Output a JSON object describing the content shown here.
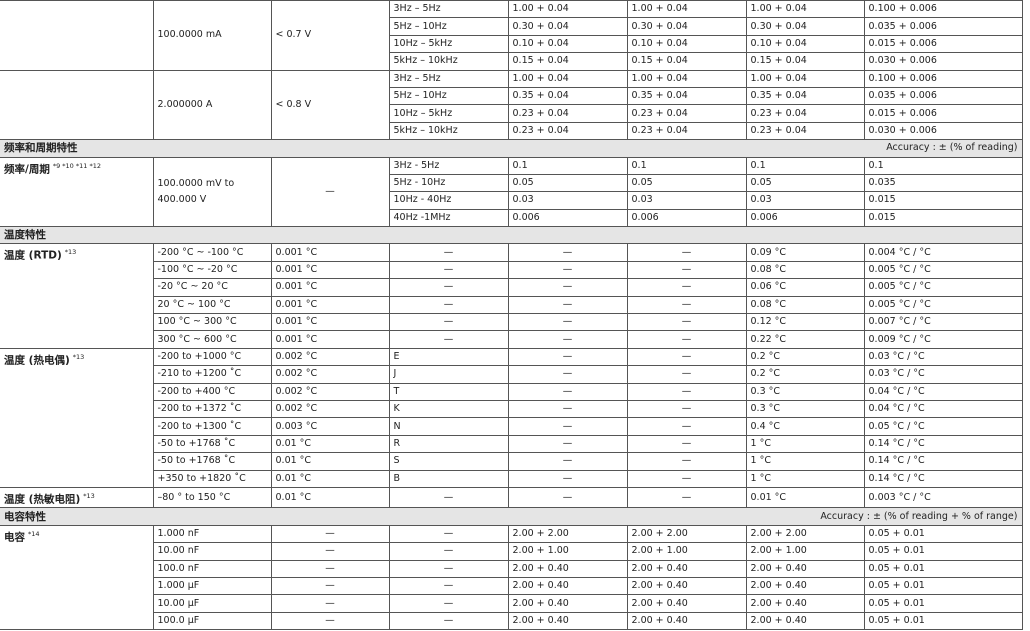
{
  "blocks": [
    {
      "range": "100.0000 mA",
      "burden": "< 0.7 V",
      "rows": [
        [
          "3Hz – 5Hz",
          "1.00 + 0.04",
          "1.00 + 0.04",
          "1.00 + 0.04",
          "0.100 + 0.006"
        ],
        [
          "5Hz – 10Hz",
          "0.30 + 0.04",
          "0.30 + 0.04",
          "0.30 + 0.04",
          "0.035 + 0.006"
        ],
        [
          "10Hz – 5kHz",
          "0.10 + 0.04",
          "0.10 + 0.04",
          "0.10 + 0.04",
          "0.015 + 0.006"
        ],
        [
          "5kHz – 10kHz",
          "0.15 + 0.04",
          "0.15 + 0.04",
          "0.15 + 0.04",
          "0.030 + 0.006"
        ]
      ]
    },
    {
      "range": "2.000000 A",
      "burden": "< 0.8 V",
      "rows": [
        [
          "3Hz – 5Hz",
          "1.00 + 0.04",
          "1.00 + 0.04",
          "1.00 + 0.04",
          "0.100 + 0.006"
        ],
        [
          "5Hz – 10Hz",
          "0.35 + 0.04",
          "0.35 + 0.04",
          "0.35 + 0.04",
          "0.035 + 0.006"
        ],
        [
          "10Hz – 5kHz",
          "0.23 + 0.04",
          "0.23 + 0.04",
          "0.23 + 0.04",
          "0.015 + 0.006"
        ],
        [
          "5kHz – 10kHz",
          "0.23 + 0.04",
          "0.23 + 0.04",
          "0.23 + 0.04",
          "0.030 + 0.006"
        ]
      ]
    },
    {
      "section": "频率和周期特性",
      "note": "Accuracy : ± (% of reading)"
    },
    {
      "label": "频率/周期",
      "sup": "*9 *10 *11 *12",
      "range": "100.0000 mV to 400.000 V",
      "burden": "—",
      "rows": [
        [
          "3Hz - 5Hz",
          "0.1",
          "0.1",
          "0.1",
          "0.1"
        ],
        [
          "5Hz - 10Hz",
          "0.05",
          "0.05",
          "0.05",
          "0.035"
        ],
        [
          "10Hz - 40Hz",
          "0.03",
          "0.03",
          "0.03",
          "0.015"
        ],
        [
          "40Hz -1MHz",
          "0.006",
          "0.006",
          "0.006",
          "0.015"
        ]
      ]
    },
    {
      "section": "温度特性"
    },
    {
      "label": "温度 (RTD)",
      "sup": "*13",
      "rows": [
        [
          "-200 °C ~ -100 °C",
          "0.001 °C",
          "—",
          "—",
          "—",
          "0.09 °C",
          "0.004 °C / °C"
        ],
        [
          "-100 °C ~ -20 °C",
          "0.001 °C",
          "—",
          "—",
          "—",
          "0.08 °C",
          "0.005 °C / °C"
        ],
        [
          "-20 °C ~ 20 °C",
          "0.001 °C",
          "—",
          "—",
          "—",
          "0.06 °C",
          "0.005 °C / °C"
        ],
        [
          "20 °C ~ 100 °C",
          "0.001 °C",
          "—",
          "—",
          "—",
          "0.08 °C",
          "0.005 °C / °C"
        ],
        [
          "100 °C ~ 300 °C",
          "0.001 °C",
          "—",
          "—",
          "—",
          "0.12 °C",
          "0.007 °C / °C"
        ],
        [
          "300 °C ~ 600 °C",
          "0.001 °C",
          "—",
          "—",
          "—",
          "0.22 °C",
          "0.009 °C / °C"
        ]
      ]
    },
    {
      "label": "温度 (热电偶)",
      "sup": "*13",
      "rows": [
        [
          "-200 to +1000 °C",
          "0.002 °C",
          "E",
          "—",
          "—",
          "0.2 °C",
          "0.03 °C / °C"
        ],
        [
          "-210 to +1200 ˚C",
          "0.002 °C",
          "J",
          "—",
          "—",
          "0.2 °C",
          "0.03 °C / °C"
        ],
        [
          "-200 to +400 °C",
          "0.002 °C",
          "T",
          "—",
          "—",
          "0.3 °C",
          "0.04 °C / °C"
        ],
        [
          "-200 to +1372 ˚C",
          "0.002 °C",
          "K",
          "—",
          "—",
          "0.3 °C",
          "0.04 °C / °C"
        ],
        [
          "-200 to +1300 ˚C",
          "0.003 °C",
          "N",
          "—",
          "—",
          "0.4 °C",
          "0.05 °C / °C"
        ],
        [
          "-50 to +1768 ˚C",
          "0.01 °C",
          "R",
          "—",
          "—",
          "1 °C",
          "0.14 °C / °C"
        ],
        [
          "-50 to +1768 ˚C",
          "0.01 °C",
          "S",
          "—",
          "—",
          "1 °C",
          "0.14 °C / °C"
        ],
        [
          "+350 to +1820 ˚C",
          "0.01 °C",
          "B",
          "—",
          "—",
          "1 °C",
          "0.14 °C / °C"
        ]
      ]
    },
    {
      "label": "温度 (热敏电阻)",
      "sup": "*13",
      "rows": [
        [
          "–80 ° to 150 °C",
          "0.01 °C",
          "—",
          "—",
          "—",
          "0.01 °C",
          "0.003 °C / °C"
        ]
      ]
    },
    {
      "section": "电容特性",
      "note": "Accuracy : ± (% of reading + % of range)"
    },
    {
      "label": "电容",
      "sup": "*14",
      "rows": [
        [
          "1.000 nF",
          "—",
          "—",
          "2.00 + 2.00",
          "2.00 + 2.00",
          "2.00 + 2.00",
          "0.05 + 0.01"
        ],
        [
          "10.00 nF",
          "—",
          "—",
          "2.00 + 1.00",
          "2.00 + 1.00",
          "2.00 + 1.00",
          "0.05 + 0.01"
        ],
        [
          "100.0 nF",
          "—",
          "—",
          "2.00 + 0.40",
          "2.00 + 0.40",
          "2.00 + 0.40",
          "0.05 + 0.01"
        ],
        [
          "1.000 µF",
          "—",
          "—",
          "2.00 + 0.40",
          "2.00 + 0.40",
          "2.00 + 0.40",
          "0.05 + 0.01"
        ],
        [
          "10.00 µF",
          "—",
          "—",
          "2.00 + 0.40",
          "2.00 + 0.40",
          "2.00 + 0.40",
          "0.05 + 0.01"
        ],
        [
          "100.0 µF",
          "—",
          "—",
          "2.00 + 0.40",
          "2.00 + 0.40",
          "2.00 + 0.40",
          "0.05 + 0.01"
        ]
      ]
    }
  ]
}
